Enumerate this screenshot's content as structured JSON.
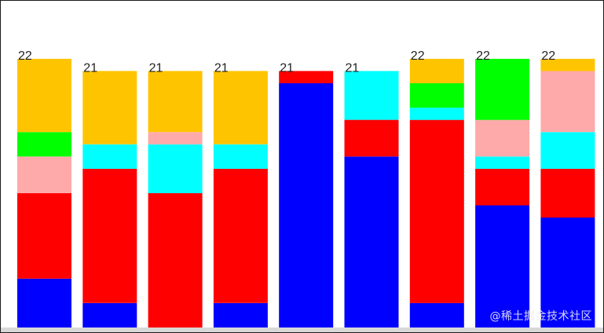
{
  "chart_data": {
    "type": "bar",
    "stacked": true,
    "categories": [
      "",
      "",
      "",
      "",
      "",
      "",
      "",
      "",
      ""
    ],
    "totals": [
      22,
      21,
      21,
      21,
      21,
      21,
      22,
      22,
      22
    ],
    "ylim": [
      0,
      22
    ],
    "grid": false,
    "legend": "none",
    "series": [
      {
        "color": "#0000ff",
        "values": [
          4,
          2,
          0,
          2,
          20,
          14,
          2,
          10,
          9
        ]
      },
      {
        "color": "#ff0000",
        "values": [
          7,
          11,
          11,
          11,
          1,
          3,
          15,
          3,
          4
        ]
      },
      {
        "color": "#00ffff",
        "values": [
          0,
          2,
          4,
          2,
          0,
          4,
          1,
          1,
          3
        ]
      },
      {
        "color": "#ffaaaa",
        "values": [
          3,
          0,
          1,
          0,
          0,
          0,
          0,
          3,
          5
        ]
      },
      {
        "color": "#00ff00",
        "values": [
          2,
          0,
          0,
          0,
          0,
          0,
          2,
          5,
          0
        ]
      },
      {
        "color": "#ffc400",
        "values": [
          6,
          6,
          5,
          6,
          0,
          0,
          2,
          0,
          1
        ]
      }
    ]
  },
  "watermark": "@稀土掘金技术社区"
}
